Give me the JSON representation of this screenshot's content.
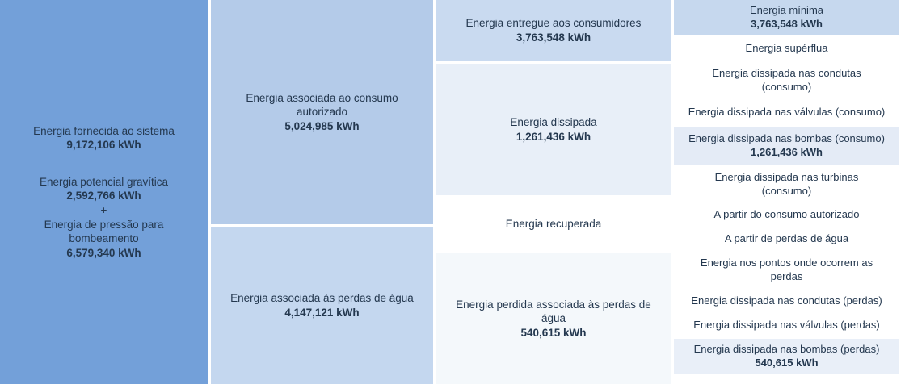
{
  "unit": "kWh",
  "colors": {
    "page-bg": "#ffffff",
    "text": "#24384f",
    "col1-bg": "#73a0d9",
    "col2-top-bg": "#b4cbe9",
    "col2-bottom-bg": "#c4d7ef",
    "col3-entregue-bg": "#c9daf0",
    "col3-dissipada-bg": "#e8eff8",
    "col3-recuperada-bg": "#ffffff",
    "col3-perdida-bg": "#f4f8fb",
    "col4-minima-bg": "#c6d8ee",
    "col4-row-bg": "#ffffff",
    "col4-bombas-consumo-bg": "#e4ebf6",
    "col4-bombas-perdas-bg": "#e9eff8"
  },
  "col1": {
    "label1": "Energia fornecida ao sistema",
    "value1": "9,172,106 kWh",
    "label2": "Energia potencial gravítica",
    "value2": "2,592,766 kWh",
    "plus": "+",
    "label3": "Energia de pressão para bombeamento",
    "value3": "6,579,340 kWh"
  },
  "col2": {
    "cells": [
      {
        "label": "Energia associada ao consumo autorizado",
        "value": "5,024,985 kWh"
      },
      {
        "label": "Energia associada às perdas de água",
        "value": "4,147,121 kWh"
      }
    ]
  },
  "col3": {
    "cells": [
      {
        "label": "Energia entregue aos consumidores",
        "value": "3,763,548 kWh"
      },
      {
        "label": "Energia dissipada",
        "value": "1,261,436 kWh"
      },
      {
        "label": "Energia recuperada"
      },
      {
        "label": "Energia perdida associada às perdas de água",
        "value": "540,615 kWh"
      }
    ]
  },
  "col4": {
    "rows": [
      {
        "label": "Energia mínima",
        "value": "3,763,548 kWh"
      },
      {
        "label": "Energia supérflua"
      },
      {
        "label": "Energia dissipada nas condutas (consumo)"
      },
      {
        "label": "Energia dissipada nas válvulas (consumo)"
      },
      {
        "label": "Energia dissipada nas bombas (consumo)",
        "value": "1,261,436 kWh"
      },
      {
        "label": "Energia dissipada nas turbinas (consumo)"
      },
      {
        "label": "A partir do consumo autorizado"
      },
      {
        "label": "A partir de perdas de água"
      },
      {
        "label": "Energia nos pontos onde ocorrem as perdas"
      },
      {
        "label": "Energia dissipada nas condutas (perdas)"
      },
      {
        "label": "Energia dissipada nas válvulas (perdas)"
      },
      {
        "label": "Energia dissipada nas bombas (perdas)",
        "value": "540,615 kWh"
      }
    ]
  }
}
